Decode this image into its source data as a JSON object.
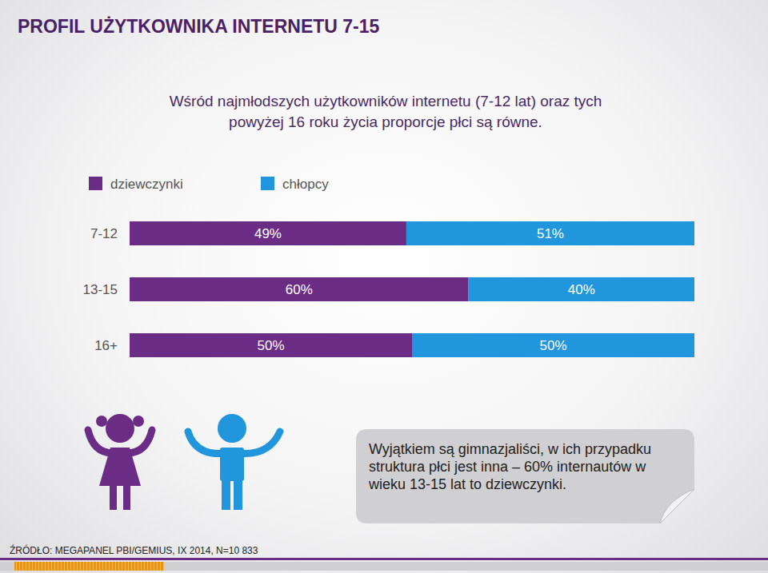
{
  "page": {
    "title": "PROFIL UŻYTKOWNIKA INTERNETU 7-15",
    "source": "ŹRÓDŁO: MEGAPANEL PBI/GEMIUS, IX 2014, N=10 833"
  },
  "chart_data": {
    "type": "bar",
    "orientation": "horizontal",
    "stacked": true,
    "data_labels": true,
    "tick_labels": "y",
    "title": "Wśród najmłodszych użytkowników internetu (7-12 lat) oraz tych powyżej 16 roku życia proporcje płci są równe.",
    "annotations": [
      "Wyjątkiem są gimnazjaliści, w ich przypadku struktura płci jest inna – 60% internautów w wieku 13-15 lat to dziewczynki."
    ],
    "categories": [
      "7-12",
      "13-15",
      "16+"
    ],
    "xlim": [
      0,
      100
    ],
    "legend": "top",
    "series": [
      {
        "name": "dziewczynki",
        "color": "#6a2c84",
        "values": [
          49,
          60,
          50
        ],
        "value_labels": [
          "49%",
          "60%",
          "50%"
        ]
      },
      {
        "name": "chłopcy",
        "color": "#2196dc",
        "values": [
          51,
          40,
          50
        ],
        "value_labels": [
          "51%",
          "40%",
          "50%"
        ]
      }
    ]
  }
}
